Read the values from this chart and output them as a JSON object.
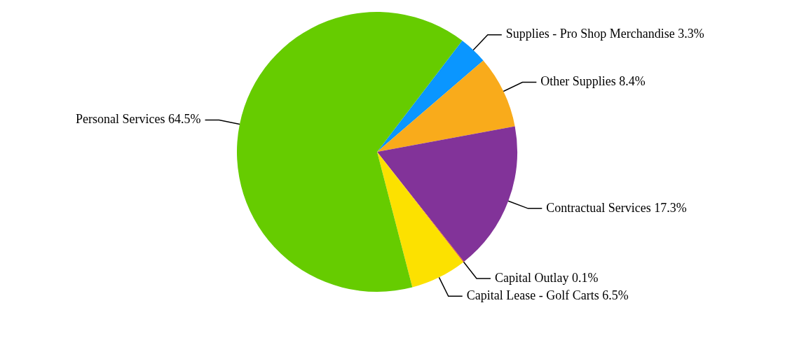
{
  "chart_data": {
    "type": "pie",
    "categories": [
      "Supplies - Pro Shop Merchandise",
      "Other Supplies",
      "Contractual Services",
      "Capital Outlay",
      "Capital Lease - Golf Carts",
      "Personal Services"
    ],
    "values": [
      3.3,
      8.4,
      17.3,
      0.1,
      6.5,
      64.5
    ],
    "value_labels": [
      "3.3%",
      "8.4%",
      "17.3%",
      "0.1%",
      "6.5%",
      "64.5%"
    ],
    "colors": [
      "#0a96ff",
      "#f9ab1b",
      "#823399",
      "#e05a2b",
      "#fce100",
      "#66cc00"
    ]
  }
}
